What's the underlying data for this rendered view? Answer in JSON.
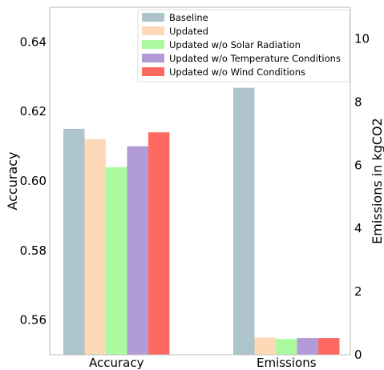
{
  "chart_data": {
    "type": "bar",
    "title": "",
    "categories": [
      "Accuracy",
      "Emissions"
    ],
    "ylabel_left": "Accuracy",
    "ylabel_right": "Emissions in kgCO2",
    "ylim_left": [
      0.55,
      0.65
    ],
    "ylim_right": [
      0,
      11
    ],
    "yticks_left": [
      "0.56",
      "0.58",
      "0.60",
      "0.62",
      "0.64"
    ],
    "yticks_right": [
      "0",
      "2",
      "4",
      "6",
      "8",
      "10"
    ],
    "legend_position": "top-center",
    "grid": false,
    "series": [
      {
        "name": "Baseline",
        "color": "#adc4cd",
        "accuracy": 0.615,
        "emissions": 8.45
      },
      {
        "name": "Updated",
        "color": "#fed9b7",
        "accuracy": 0.612,
        "emissions": 0.55
      },
      {
        "name": "Updated w/o Solar Radiation",
        "color": "#acfaa0",
        "accuracy": 0.604,
        "emissions": 0.5
      },
      {
        "name": "Updated w/o Temperature Conditions",
        "color": "#b19cd9",
        "accuracy": 0.61,
        "emissions": 0.53
      },
      {
        "name": "Updated w/o Wind Conditions",
        "color": "#ff6961",
        "accuracy": 0.614,
        "emissions": 0.53
      }
    ]
  }
}
